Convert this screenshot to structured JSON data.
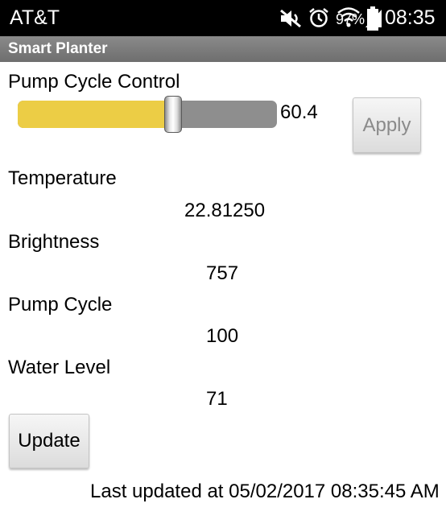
{
  "status_bar": {
    "carrier": "AT&T",
    "battery_percent": "97%",
    "time": "08:35",
    "icons": [
      "mute-icon",
      "alarm-icon",
      "wifi-icon",
      "signal-icon",
      "battery-icon"
    ]
  },
  "app": {
    "title": "Smart Planter"
  },
  "pump_control": {
    "label": "Pump Cycle Control",
    "slider_value": "60.4",
    "slider_fraction": 0.6,
    "apply_label": "Apply"
  },
  "readings": {
    "temperature_label": "Temperature",
    "temperature_value": "22.81250",
    "brightness_label": "Brightness",
    "brightness_value": "757",
    "pump_cycle_label": "Pump Cycle",
    "pump_cycle_value": "100",
    "water_level_label": "Water Level",
    "water_level_value": "71"
  },
  "actions": {
    "update_label": "Update"
  },
  "footer": {
    "last_updated": "Last updated at 05/02/2017 08:35:45 AM"
  },
  "colors": {
    "slider_fill": "#eccd45",
    "slider_track": "#8e8e8e",
    "title_bar": "#7c7c7c",
    "status_bar": "#000000"
  }
}
